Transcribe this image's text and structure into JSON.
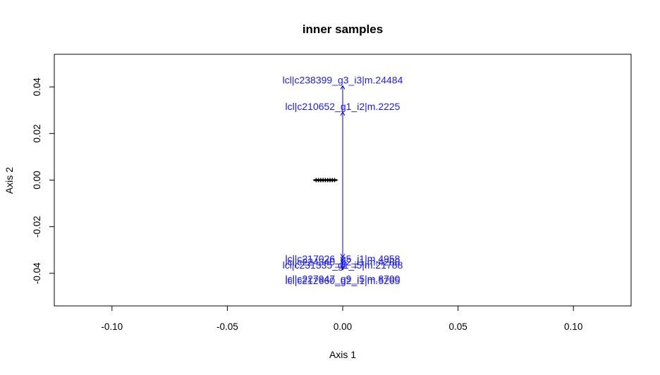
{
  "chart_data": {
    "type": "scatter",
    "title": "inner samples",
    "xlabel": "Axis 1",
    "ylabel": "Axis 2",
    "xlim": [
      -0.125,
      0.125
    ],
    "ylim": [
      -0.054,
      0.054
    ],
    "xticks": [
      -0.1,
      -0.05,
      0.0,
      0.05,
      0.1
    ],
    "xtick_labels": [
      "-0.10",
      "-0.05",
      "0.00",
      "0.05",
      "0.10"
    ],
    "yticks": [
      -0.04,
      -0.02,
      0.0,
      0.02,
      0.04
    ],
    "ytick_labels": [
      "-0.04",
      "-0.02",
      "0.00",
      "0.02",
      "0.04"
    ],
    "grid": false,
    "point_color": "#000000",
    "arrow_color": "#0000cc",
    "label_color": "#1a1aff",
    "points": [
      {
        "x": -0.0115,
        "y": 0.0
      },
      {
        "x": -0.0105,
        "y": 0.0
      },
      {
        "x": -0.0095,
        "y": 0.0
      },
      {
        "x": -0.0085,
        "y": 0.0
      },
      {
        "x": -0.0075,
        "y": 0.0
      },
      {
        "x": -0.0065,
        "y": 0.0
      },
      {
        "x": -0.0055,
        "y": 0.0
      },
      {
        "x": -0.0045,
        "y": 0.0
      },
      {
        "x": -0.0035,
        "y": 0.0
      }
    ],
    "variables": [
      {
        "label": "lcl|c238399_g3_i3|m.24484",
        "x": 0.0,
        "y": 0.0405
      },
      {
        "label": "lcl|c210652_g1_i2|m.2225",
        "x": 0.0,
        "y": 0.0292
      },
      {
        "label": "lcl|c217026_g5_i1|m.4958",
        "x": 0.0,
        "y": -0.0332
      },
      {
        "label": "lcl|c224340_g2_i1|m.4288",
        "x": 0.0,
        "y": -0.0345
      },
      {
        "label": "lcl|c231335_g1_i5|m.21788",
        "x": 0.0,
        "y": -0.0358
      },
      {
        "label": "lcl|c227947_g9_i5|m.8700",
        "x": 0.0,
        "y": -0.0378
      },
      {
        "label": "lcl|c212660_g2_i1|m.5265",
        "x": 0.0,
        "y": -0.0385
      }
    ]
  }
}
